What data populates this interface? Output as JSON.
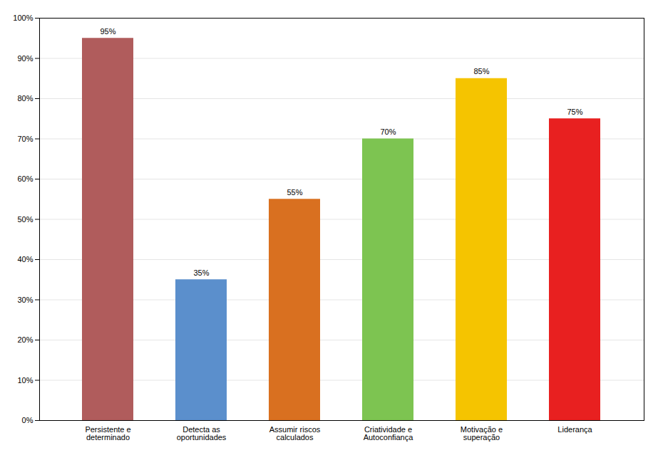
{
  "chart_data": {
    "type": "bar",
    "categories": [
      "Persistente e\ndeterminado",
      "Detecta as\noportunidades",
      "Assumir riscos\ncalculados",
      "Criatividade e\nAutoconfiança",
      "Motivação e\nsuperação",
      "Liderança"
    ],
    "values": [
      95,
      35,
      55,
      70,
      85,
      75
    ],
    "colors": [
      "#b05c5c",
      "#5b8fcc",
      "#d97020",
      "#7dc451",
      "#f5c400",
      "#e82020"
    ],
    "data_labels": true,
    "value_labels": [
      "95%",
      "35%",
      "55%",
      "70%",
      "85%",
      "75%"
    ],
    "ylim": [
      0,
      100
    ],
    "yticks": [
      {
        "value": 0,
        "label": "0%"
      },
      {
        "value": 10,
        "label": "10%"
      },
      {
        "value": 20,
        "label": "20%"
      },
      {
        "value": 30,
        "label": "30%"
      },
      {
        "value": 40,
        "label": "40%"
      },
      {
        "value": 50,
        "label": "50%"
      },
      {
        "value": 60,
        "label": "60%"
      },
      {
        "value": 70,
        "label": "70%"
      },
      {
        "value": 80,
        "label": "80%"
      },
      {
        "value": 90,
        "label": "90%"
      },
      {
        "value": 100,
        "label": "100%"
      }
    ],
    "grid": true
  }
}
